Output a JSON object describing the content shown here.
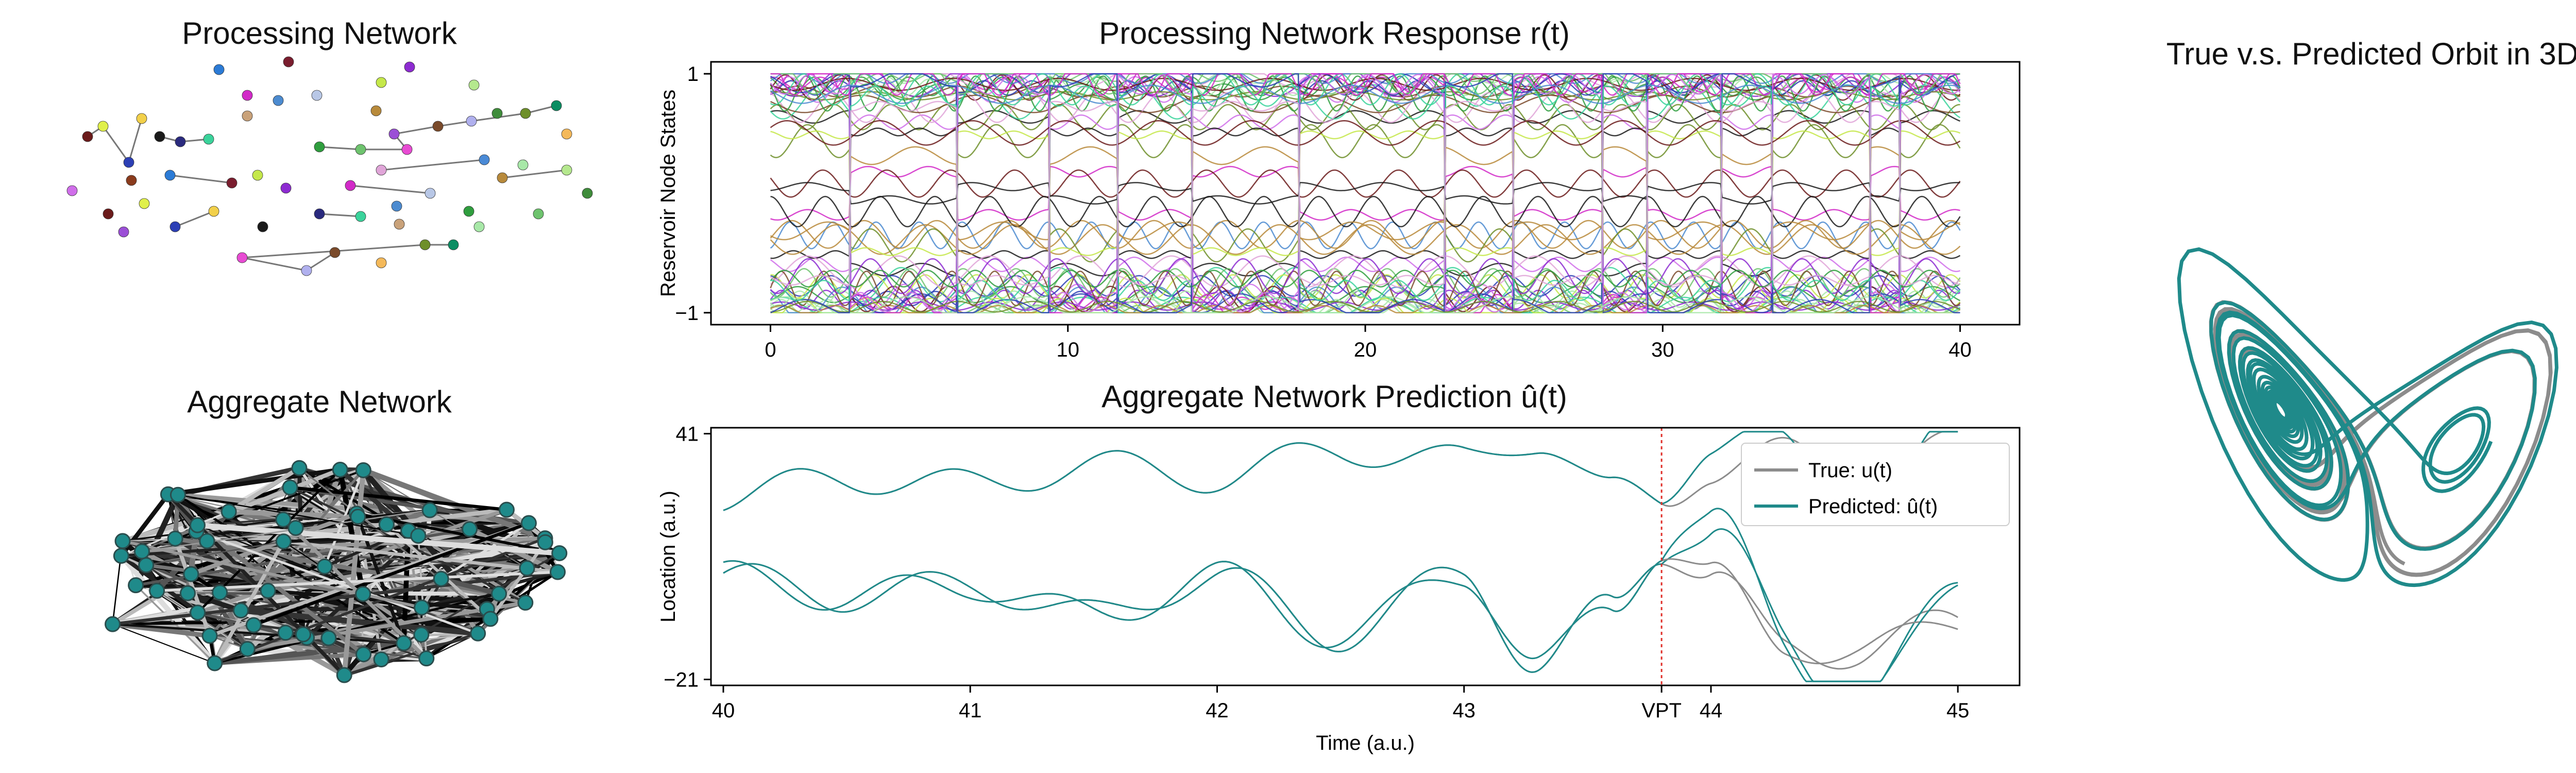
{
  "processing_network": {
    "title": "Processing Network",
    "node_colors": [
      "#2b7bd6",
      "#7a1d2e",
      "#c5e84a",
      "#8d2bd1",
      "#d22ac8",
      "#4c8bd0",
      "#b8c7e6",
      "#b88a3b",
      "#b5e88e",
      "#3f8c3b",
      "#6b1b1b",
      "#e0f04a",
      "#2c3fb5",
      "#f2d04a",
      "#1a1a1a",
      "#2a2a7e",
      "#3ad39b",
      "#c9a27a",
      "#2f9e3e",
      "#6ec36e",
      "#9b4fd6",
      "#e84bd3",
      "#7a4a2a",
      "#b0b0ee",
      "#6e8f2a",
      "#0b8d62",
      "#f4b95a",
      "#a8e8a8",
      "#4a8ad6",
      "#e0a5d8",
      "#d06eea",
      "#8a3b1d"
    ]
  },
  "aggregate_network": {
    "title": "Aggregate Network",
    "node_color": "#1f8a8a"
  },
  "chart_data": [
    {
      "type": "line",
      "title": "Processing Network Response r(t)",
      "xlabel": "",
      "ylabel": "Reservoir Node States",
      "xlim": [
        -2,
        42
      ],
      "ylim": [
        -1.1,
        1.1
      ],
      "x_ticks": [
        "0",
        "10",
        "20",
        "30",
        "40"
      ],
      "y_ticks": [
        "1",
        "−1"
      ],
      "x_range": [
        0,
        40
      ],
      "series_count": 60,
      "series_colors": [
        "#8d2bd1",
        "#1a1a1a",
        "#2f9e3e",
        "#a8e8a8",
        "#d22ac8",
        "#4c8bd0",
        "#b88a3b",
        "#6e8f2a",
        "#2c3fb5",
        "#6b1b1b",
        "#3ad39b",
        "#e0a5d8",
        "#7a4a2a",
        "#6ec36e",
        "#c5e84a",
        "#d06eea"
      ]
    },
    {
      "type": "line",
      "title": "Aggregate Network Prediction û(t)",
      "xlabel": "Time (a.u.)",
      "ylabel": "Location (a.u.)",
      "xlim": [
        39.95,
        45.25
      ],
      "ylim": [
        -22.5,
        42.5
      ],
      "x_ticks": [
        "40",
        "41",
        "42",
        "43",
        "VPT",
        "44",
        "45"
      ],
      "x_tick_values": [
        40,
        41,
        42,
        43,
        43.8,
        44,
        45
      ],
      "y_ticks": [
        "41",
        "−21"
      ],
      "vpt": 43.8,
      "series": [
        {
          "name": "True: u(t)",
          "color": "#8c8c8c"
        },
        {
          "name": "Predicted: û(t)",
          "color": "#1f8a8a"
        }
      ],
      "x": [
        40.0,
        40.5,
        41.0,
        41.5,
        42.0,
        42.5,
        43.0,
        43.3,
        43.6,
        43.8,
        44.0,
        44.3,
        44.6,
        45.0
      ],
      "upper": [
        25,
        30,
        28,
        33,
        30,
        37,
        34,
        40,
        26,
        24,
        32,
        36,
        31,
        38
      ],
      "lower": [
        5,
        0,
        3,
        -5,
        5,
        -10,
        6,
        -18,
        -2,
        12,
        5,
        -12,
        -15,
        -5
      ]
    }
  ],
  "orbit": {
    "title": "True v.s. Predicted Orbit in 3D",
    "true_color": "#8c8c8c",
    "pred_color": "#1f8a8a"
  }
}
